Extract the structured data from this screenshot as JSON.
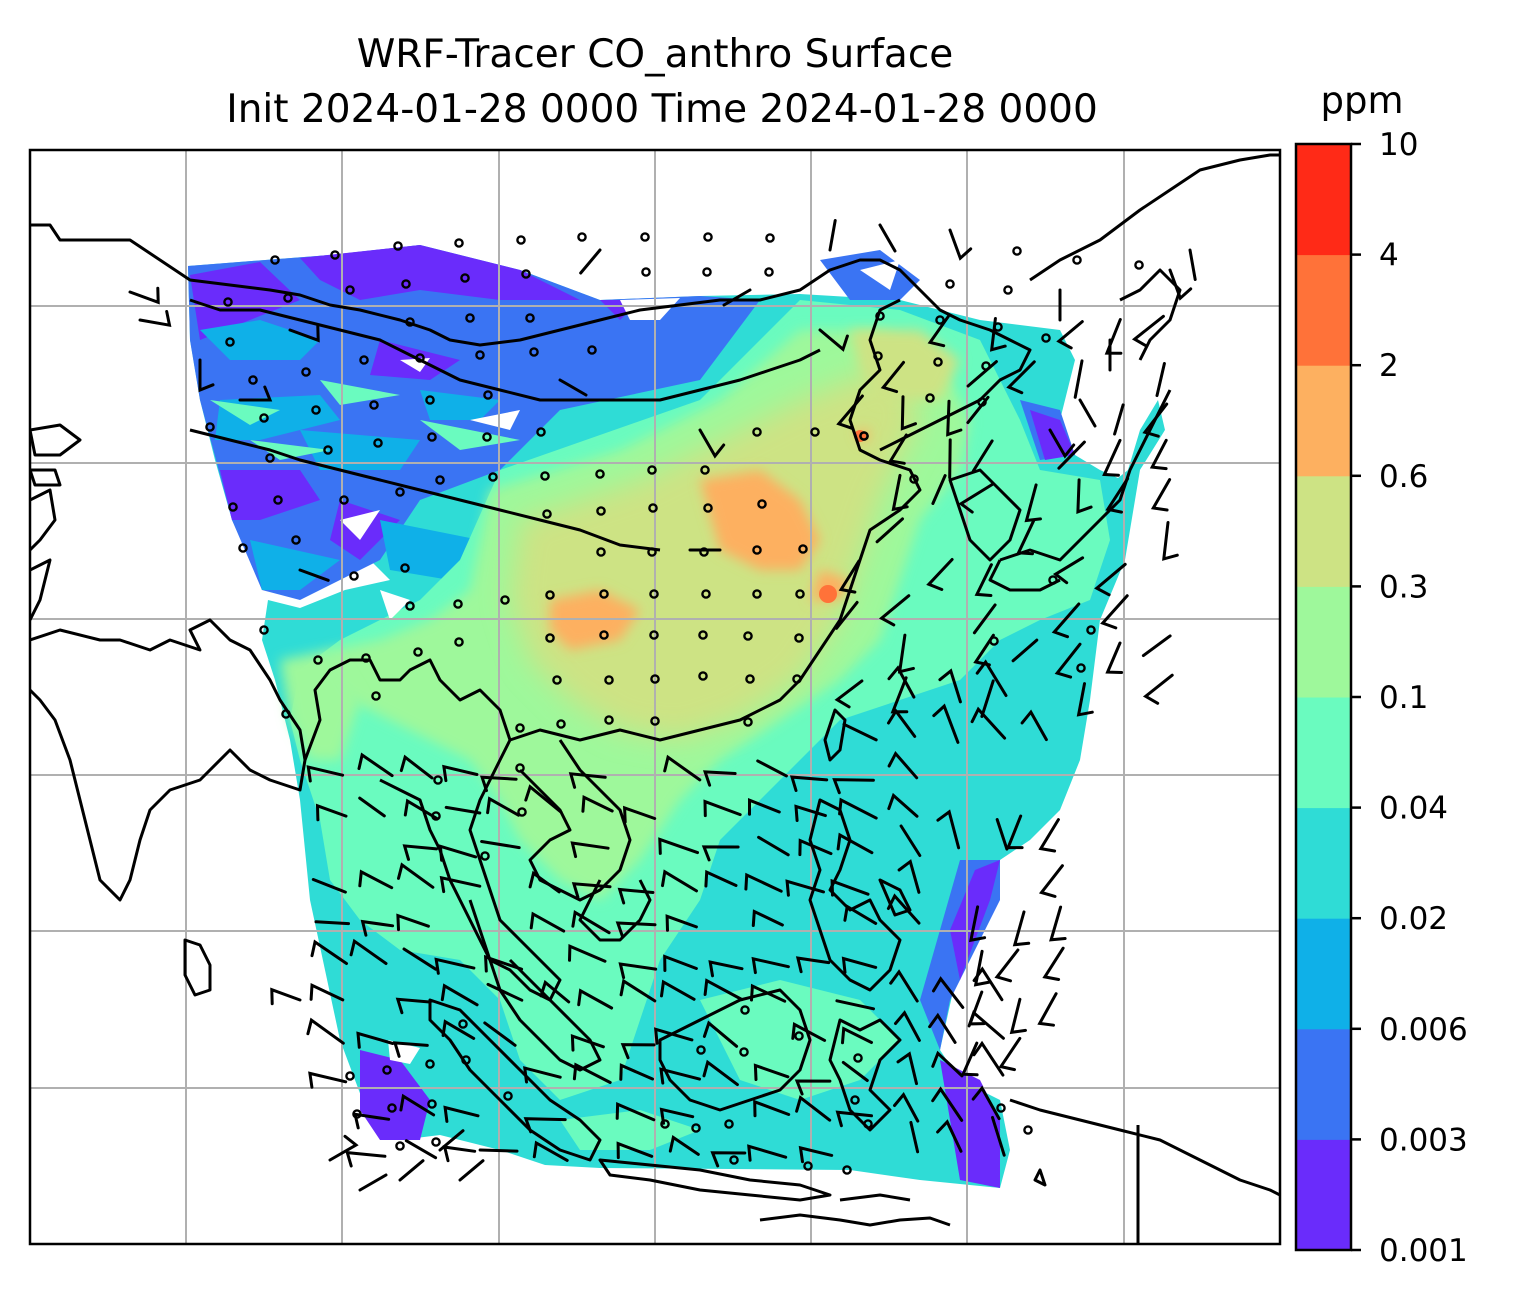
{
  "title": {
    "line1": "WRF-Tracer CO_anthro Surface",
    "line2": "Init 2024-01-28 0000 Time 2024-01-28 0000"
  },
  "colorbar": {
    "unit": "ppm",
    "ticks": [
      "0.001",
      "0.003",
      "0.006",
      "0.02",
      "0.04",
      "0.1",
      "0.3",
      "0.6",
      "2",
      "4",
      "10"
    ],
    "colors": [
      "#6a2cfb",
      "#3a74f3",
      "#0fb0e8",
      "#2fdcd6",
      "#6afbbf",
      "#9ef89b",
      "#cde384",
      "#fdb060",
      "#ff7239",
      "#ff2a17"
    ]
  },
  "map": {
    "gridlines": true,
    "field_colors": {
      "very_low": "#6a2cfb",
      "low": "#3a74f3",
      "mid_low": "#0fb0e8",
      "mid": "#2fdcd6",
      "mid_high": "#6afbbf",
      "high": "#9ef89b",
      "very_high": "#cde384",
      "peak": "#fdb060",
      "max": "#ff7239"
    }
  }
}
